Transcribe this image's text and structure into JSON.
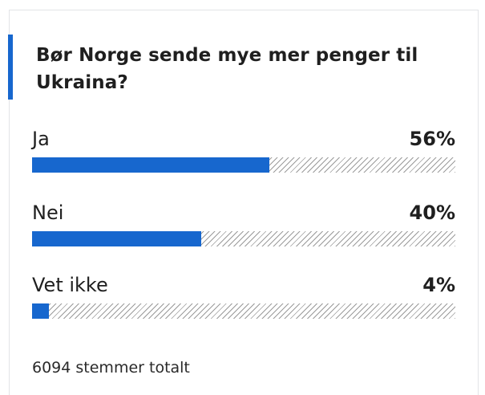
{
  "poll": {
    "question": "Bør Norge sende mye mer penger til Ukraina?",
    "accent_color": "#1767ce",
    "options": [
      {
        "label": "Ja",
        "percent_text": "56%",
        "percent": 56
      },
      {
        "label": "Nei",
        "percent_text": "40%",
        "percent": 40
      },
      {
        "label": "Vet ikke",
        "percent_text": "4%",
        "percent": 4
      }
    ],
    "total_text": "6094 stemmer totalt"
  }
}
